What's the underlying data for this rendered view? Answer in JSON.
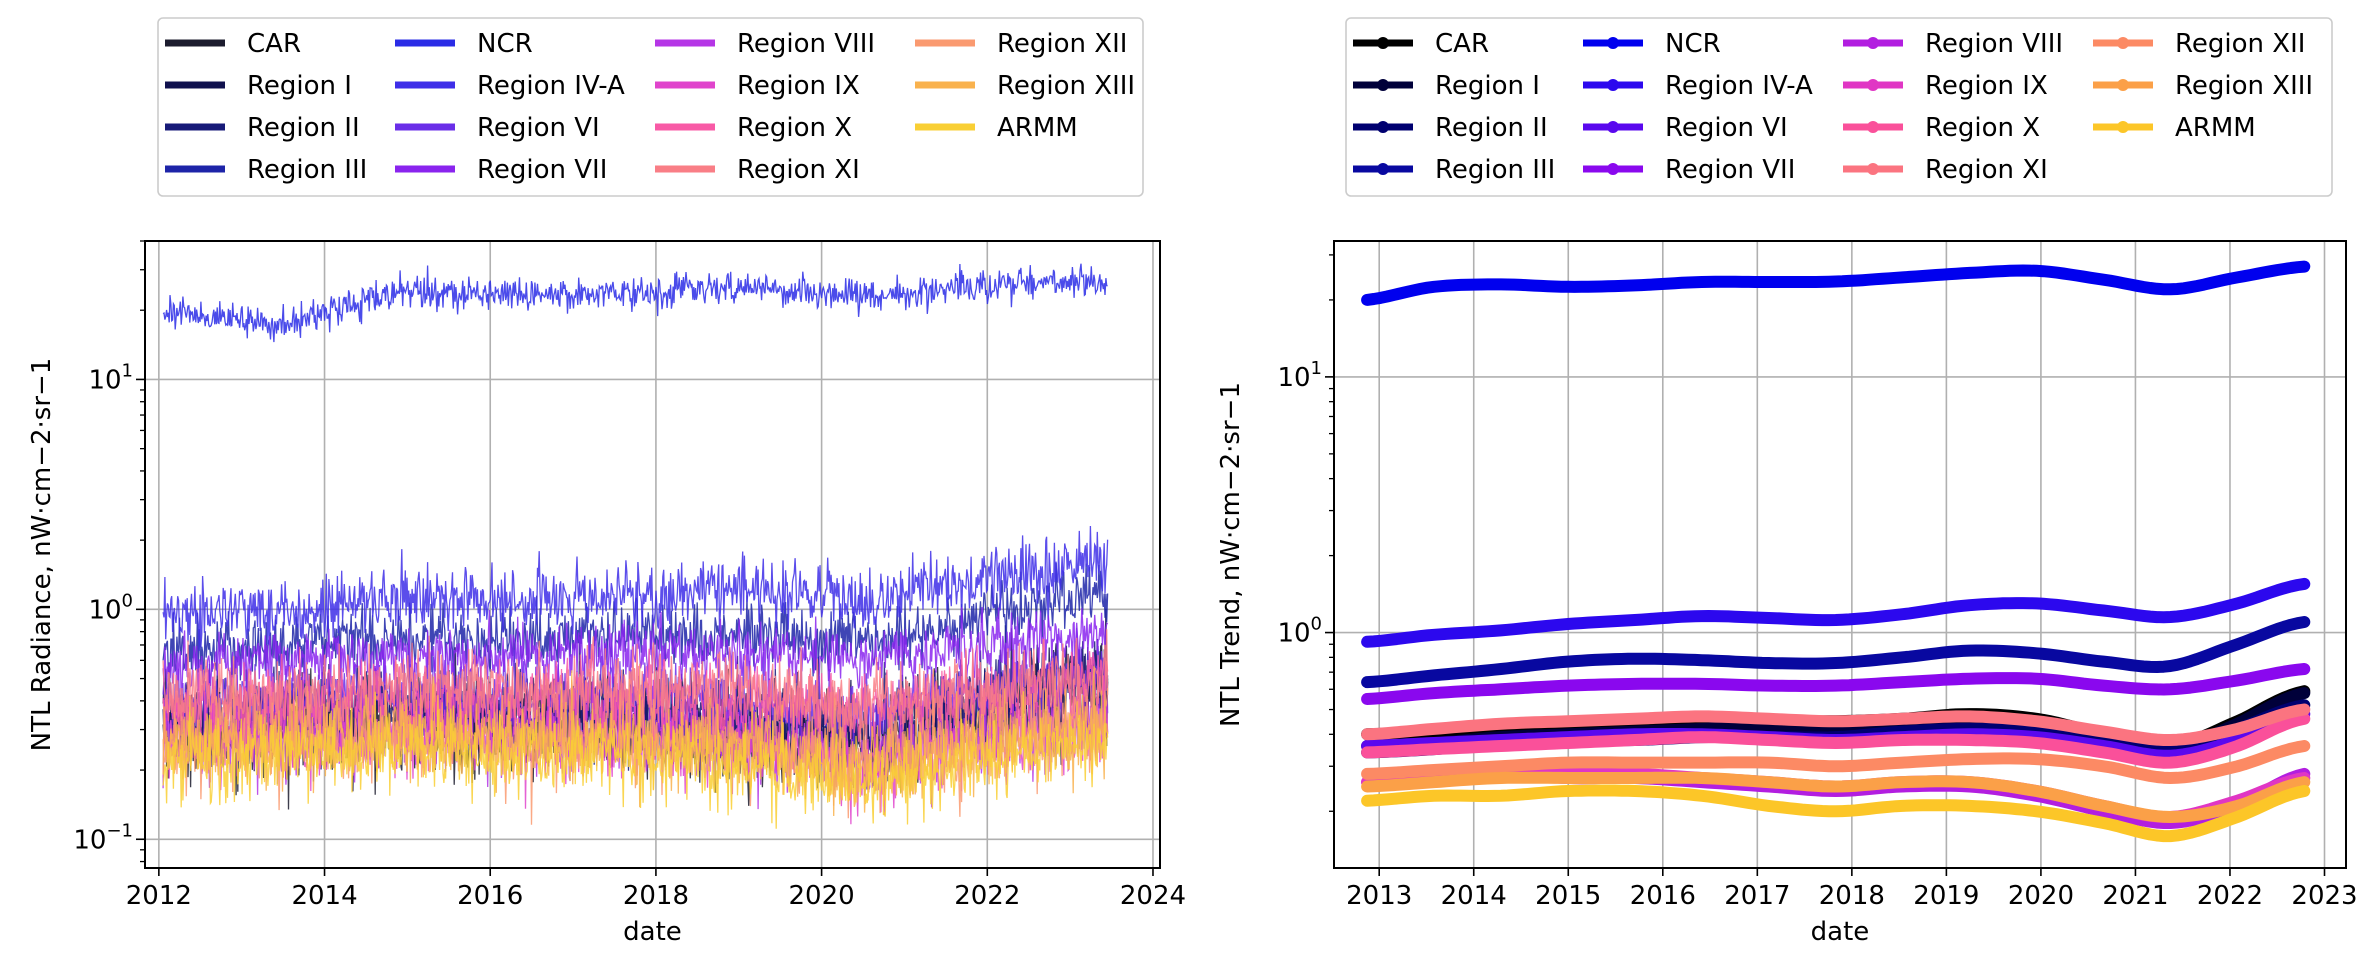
{
  "chart_data": [
    {
      "type": "line",
      "xlabel": "date",
      "ylabel": "NTL Radiance, nW·cm−2·sr−1",
      "yscale": "log",
      "ylim": [
        0.075,
        40
      ],
      "xlim": [
        "2011-11-01",
        "2024-02-01"
      ],
      "grid": true,
      "legend": {
        "placement": "top",
        "columns": 4
      },
      "x_ticks": [
        "2012",
        "2014",
        "2016",
        "2018",
        "2020",
        "2022",
        "2024"
      ],
      "y_ticks": [
        {
          "value": 0.1,
          "base": "10",
          "exp": "−1"
        },
        {
          "value": 1,
          "base": "10",
          "exp": "0"
        },
        {
          "value": 10,
          "base": "10",
          "exp": "1"
        }
      ],
      "x_range": [
        "2012-01-20",
        "2023-06-15"
      ],
      "series": [
        {
          "name": "CAR",
          "color": "#1c1c2e",
          "level": [
            0.3,
            0.3,
            0.32,
            0.3,
            0.3,
            0.27,
            0.24,
            0.35,
            0.45
          ],
          "noise": 0.23
        },
        {
          "name": "Region I",
          "color": "#10114e",
          "level": [
            0.33,
            0.34,
            0.36,
            0.34,
            0.34,
            0.3,
            0.28,
            0.4,
            0.55
          ],
          "noise": 0.22
        },
        {
          "name": "Region II",
          "color": "#171a78",
          "level": [
            0.35,
            0.36,
            0.37,
            0.36,
            0.36,
            0.32,
            0.3,
            0.4,
            0.5
          ],
          "noise": 0.22
        },
        {
          "name": "Region III",
          "color": "#1d24a8",
          "level": [
            0.65,
            0.7,
            0.76,
            0.74,
            0.8,
            0.76,
            0.7,
            0.95,
            1.15
          ],
          "noise": 0.16
        },
        {
          "name": "NCR",
          "color": "#2a2ce6",
          "level": [
            20,
            17,
            24,
            23.5,
            24,
            25,
            23,
            25.5,
            27
          ],
          "noise": 0.08
        },
        {
          "name": "Region IV-A",
          "color": "#3e2ee8",
          "level": [
            0.95,
            1.0,
            1.1,
            1.1,
            1.15,
            1.2,
            1.1,
            1.35,
            1.6
          ],
          "noise": 0.16
        },
        {
          "name": "Region VI",
          "color": "#6a2ee8",
          "level": [
            0.4,
            0.42,
            0.44,
            0.42,
            0.42,
            0.4,
            0.36,
            0.45,
            0.55
          ],
          "noise": 0.18
        },
        {
          "name": "Region VII",
          "color": "#8a24ee",
          "level": [
            0.55,
            0.6,
            0.63,
            0.63,
            0.65,
            0.65,
            0.6,
            0.68,
            0.8
          ],
          "noise": 0.15
        },
        {
          "name": "Region VIII",
          "color": "#b536e6",
          "level": [
            0.27,
            0.28,
            0.3,
            0.29,
            0.3,
            0.26,
            0.22,
            0.28,
            0.32
          ],
          "noise": 0.2
        },
        {
          "name": "Region IX",
          "color": "#e044cc",
          "level": [
            0.27,
            0.28,
            0.3,
            0.28,
            0.29,
            0.25,
            0.21,
            0.27,
            0.3
          ],
          "noise": 0.2
        },
        {
          "name": "Region X",
          "color": "#f85aa6",
          "level": [
            0.35,
            0.38,
            0.4,
            0.4,
            0.42,
            0.4,
            0.36,
            0.42,
            0.5
          ],
          "noise": 0.2
        },
        {
          "name": "Region XI",
          "color": "#f97e86",
          "level": [
            0.4,
            0.42,
            0.45,
            0.45,
            0.46,
            0.44,
            0.38,
            0.45,
            0.52
          ],
          "noise": 0.2
        },
        {
          "name": "Region XII",
          "color": "#fa9a70",
          "level": [
            0.25,
            0.27,
            0.28,
            0.27,
            0.28,
            0.25,
            0.22,
            0.27,
            0.32
          ],
          "noise": 0.2
        },
        {
          "name": "Region XIII",
          "color": "#f9b24e",
          "level": [
            0.26,
            0.27,
            0.28,
            0.27,
            0.27,
            0.24,
            0.2,
            0.25,
            0.3
          ],
          "noise": 0.2
        },
        {
          "name": "ARMM",
          "color": "#f9cf34",
          "level": [
            0.22,
            0.23,
            0.24,
            0.23,
            0.23,
            0.21,
            0.18,
            0.22,
            0.26
          ],
          "noise": 0.2
        }
      ]
    },
    {
      "type": "line",
      "xlabel": "date",
      "ylabel": "NTL Trend, nW·cm−2·sr−1",
      "yscale": "log",
      "ylim": [
        0.12,
        34
      ],
      "xlim": [
        "2012-07-10",
        "2023-03-25"
      ],
      "grid": true,
      "legend": {
        "placement": "top",
        "columns": 4
      },
      "x_ticks": [
        "2013",
        "2014",
        "2015",
        "2016",
        "2017",
        "2018",
        "2019",
        "2020",
        "2021",
        "2022",
        "2023"
      ],
      "y_ticks": [
        {
          "value": 1,
          "base": "10",
          "exp": "0"
        },
        {
          "value": 10,
          "base": "10",
          "exp": "1"
        }
      ],
      "x_range": [
        "2012-11-15",
        "2022-10-15"
      ],
      "series": [
        {
          "name": "CAR",
          "color": "#000000",
          "values": [
            0.4,
            0.41,
            0.42,
            0.42,
            0.43,
            0.45,
            0.45,
            0.45,
            0.46,
            0.48,
            0.46,
            0.4,
            0.36,
            0.45,
            0.59
          ]
        },
        {
          "name": "Region I",
          "color": "#00003a",
          "values": [
            0.36,
            0.37,
            0.39,
            0.4,
            0.41,
            0.42,
            0.43,
            0.43,
            0.44,
            0.46,
            0.44,
            0.39,
            0.35,
            0.44,
            0.58
          ]
        },
        {
          "name": "Region II",
          "color": "#000070",
          "values": [
            0.34,
            0.35,
            0.37,
            0.38,
            0.38,
            0.39,
            0.39,
            0.39,
            0.41,
            0.42,
            0.41,
            0.37,
            0.35,
            0.42,
            0.52
          ]
        },
        {
          "name": "Region III",
          "color": "#0808a0",
          "values": [
            0.64,
            0.68,
            0.72,
            0.77,
            0.79,
            0.78,
            0.76,
            0.76,
            0.8,
            0.85,
            0.83,
            0.77,
            0.74,
            0.9,
            1.1
          ]
        },
        {
          "name": "NCR",
          "color": "#0000ee",
          "values": [
            20,
            22.5,
            23,
            22.5,
            22.8,
            23.5,
            23.5,
            23.6,
            24.5,
            25.5,
            26,
            24,
            22,
            24.5,
            27
          ]
        },
        {
          "name": "Region IV-A",
          "color": "#2c08ee",
          "values": [
            0.92,
            0.98,
            1.02,
            1.08,
            1.12,
            1.16,
            1.14,
            1.12,
            1.18,
            1.28,
            1.3,
            1.22,
            1.15,
            1.3,
            1.55
          ]
        },
        {
          "name": "Region VI",
          "color": "#5a08ee",
          "values": [
            0.36,
            0.37,
            0.38,
            0.39,
            0.4,
            0.4,
            0.39,
            0.38,
            0.39,
            0.4,
            0.39,
            0.36,
            0.33,
            0.38,
            0.48
          ]
        },
        {
          "name": "Region VII",
          "color": "#8a08ee",
          "values": [
            0.55,
            0.58,
            0.6,
            0.62,
            0.63,
            0.63,
            0.62,
            0.62,
            0.64,
            0.66,
            0.66,
            0.62,
            0.6,
            0.65,
            0.72
          ]
        },
        {
          "name": "Region VIII",
          "color": "#b21ee0",
          "values": [
            0.26,
            0.27,
            0.28,
            0.27,
            0.27,
            0.26,
            0.25,
            0.24,
            0.25,
            0.25,
            0.23,
            0.2,
            0.18,
            0.21,
            0.28
          ]
        },
        {
          "name": "Region IX",
          "color": "#e036c4",
          "values": [
            0.26,
            0.27,
            0.28,
            0.28,
            0.28,
            0.27,
            0.26,
            0.25,
            0.26,
            0.26,
            0.24,
            0.21,
            0.19,
            0.22,
            0.27
          ]
        },
        {
          "name": "Region X",
          "color": "#fa509a",
          "values": [
            0.34,
            0.35,
            0.36,
            0.37,
            0.38,
            0.39,
            0.38,
            0.37,
            0.38,
            0.38,
            0.37,
            0.34,
            0.31,
            0.36,
            0.46
          ]
        },
        {
          "name": "Region XI",
          "color": "#fb7480",
          "values": [
            0.4,
            0.42,
            0.44,
            0.45,
            0.46,
            0.47,
            0.46,
            0.45,
            0.46,
            0.47,
            0.45,
            0.41,
            0.38,
            0.42,
            0.5
          ]
        },
        {
          "name": "Region XII",
          "color": "#fc8a64",
          "values": [
            0.28,
            0.29,
            0.3,
            0.31,
            0.31,
            0.31,
            0.31,
            0.3,
            0.31,
            0.32,
            0.32,
            0.3,
            0.27,
            0.3,
            0.36
          ]
        },
        {
          "name": "Region XIII",
          "color": "#fba048",
          "values": [
            0.25,
            0.26,
            0.27,
            0.27,
            0.27,
            0.27,
            0.26,
            0.25,
            0.26,
            0.26,
            0.24,
            0.21,
            0.19,
            0.21,
            0.26
          ]
        },
        {
          "name": "ARMM",
          "color": "#fcc628",
          "values": [
            0.22,
            0.23,
            0.23,
            0.24,
            0.24,
            0.23,
            0.21,
            0.2,
            0.21,
            0.21,
            0.2,
            0.18,
            0.16,
            0.19,
            0.24
          ]
        }
      ]
    }
  ]
}
